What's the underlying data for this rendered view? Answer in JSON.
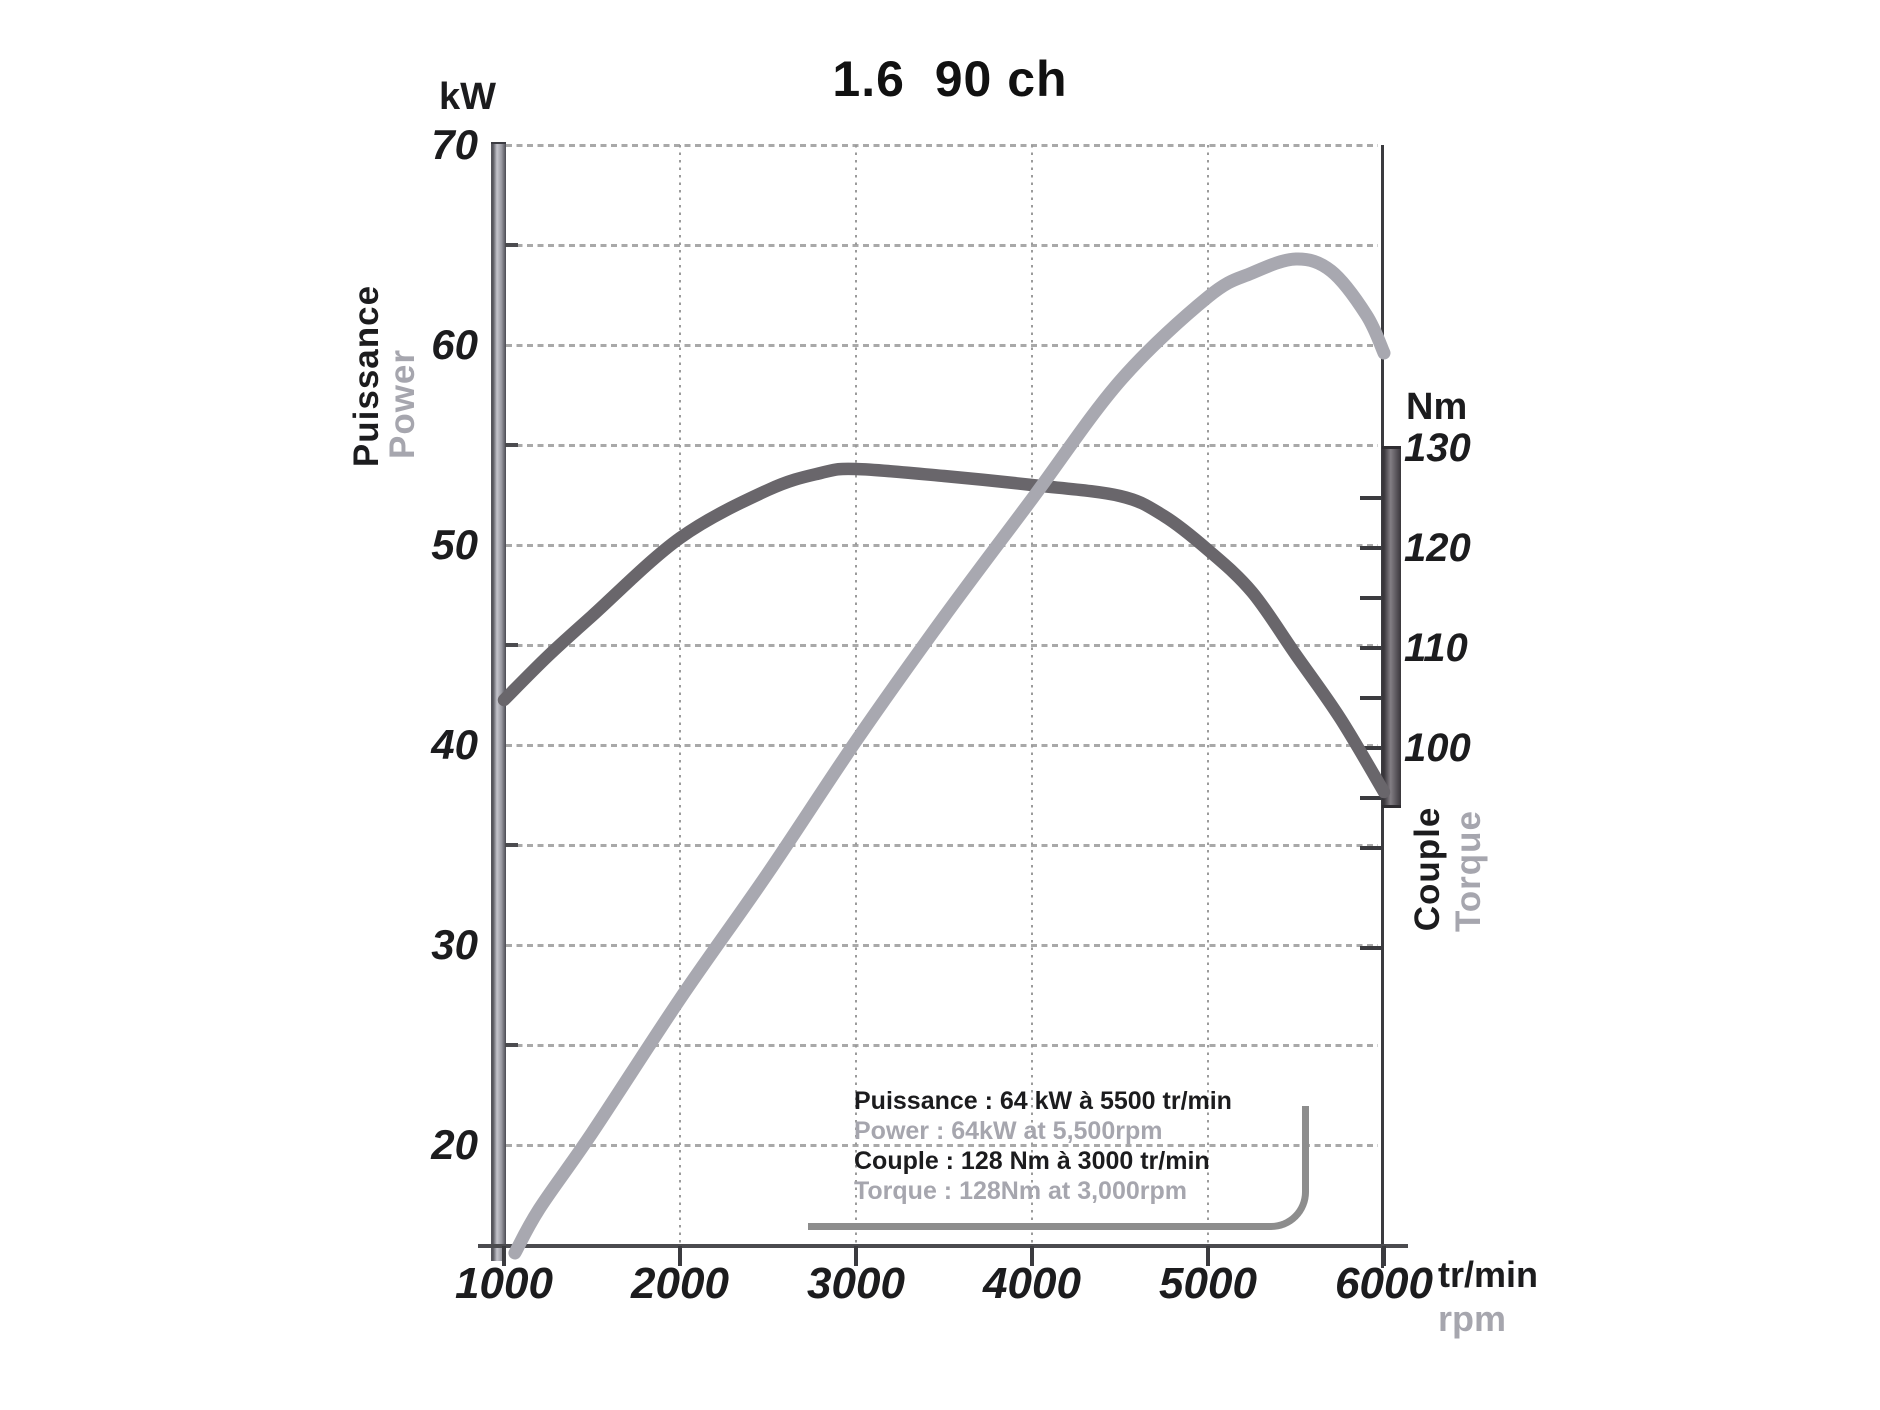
{
  "title": "1.6  90 ch",
  "power_axis": {
    "unit": "kW",
    "label_fr": "Puissance",
    "label_en": "Power",
    "tick_labels": [
      70,
      60,
      50,
      40,
      30,
      20
    ],
    "grid_values_kw": [
      70,
      65,
      60,
      55,
      50,
      45,
      40,
      35,
      30,
      25,
      20
    ],
    "minor_tick_values_kw": [
      65,
      55,
      45,
      35,
      25
    ]
  },
  "torque_axis": {
    "unit": "Nm",
    "label_fr": "Couple",
    "label_en": "Torque",
    "tick_labels": [
      130,
      120,
      110,
      100
    ],
    "tick_marks_nm": [
      125,
      120,
      115,
      110,
      105,
      100,
      95,
      90,
      80
    ]
  },
  "rpm_axis": {
    "unit_fr": "tr/min",
    "unit_en": "rpm",
    "tick_labels": [
      1000,
      2000,
      3000,
      4000,
      5000,
      6000
    ],
    "grid_values_rpm": [
      2000,
      3000,
      4000,
      5000
    ]
  },
  "annotation": {
    "power_fr": "Puissance : 64 kW à 5500 tr/min",
    "power_en": "Power : 64kW at 5,500rpm",
    "torque_fr": "Couple : 128 Nm à 3000 tr/min",
    "torque_en": "Torque : 128Nm at 3,000rpm"
  },
  "colors": {
    "power_curve": "#a8a8b0",
    "torque_curve": "#69666b",
    "gray_text": "#a6a6ae",
    "black_text": "#1c1c1e",
    "grid_dash": "#a9a9a9",
    "grid_dot": "#9b9b9b",
    "axis_dark": "#4b4b4f",
    "annotation_border": "#8d8d8d"
  },
  "chart_data": {
    "type": "line",
    "title": "1.6 90 ch — engine power and torque vs engine speed",
    "xlabel": "tr/min (rpm)",
    "x_range": [
      1000,
      6000
    ],
    "left_y": {
      "unit": "kW",
      "range": [
        15,
        70
      ],
      "grid_step": 5
    },
    "right_y": {
      "unit": "Nm",
      "range": [
        50,
        130
      ],
      "labels": [
        130,
        120,
        110,
        100
      ]
    },
    "grid": "dashed horizontal every 5 kW, dotted vertical every 1000 rpm",
    "series": [
      {
        "name": "Power",
        "unit": "kW",
        "axis": "left",
        "color": "#a8a8b0",
        "peak": "64 kW @ 5500 tr/min",
        "points": [
          [
            1062,
            14.6
          ],
          [
            1200,
            16.8
          ],
          [
            1500,
            20.6
          ],
          [
            2000,
            27.3
          ],
          [
            2500,
            33.6
          ],
          [
            3000,
            40.2
          ],
          [
            3500,
            46.4
          ],
          [
            4000,
            52.3
          ],
          [
            4500,
            58.2
          ],
          [
            5000,
            62.4
          ],
          [
            5250,
            63.6
          ],
          [
            5500,
            64.3
          ],
          [
            5700,
            63.7
          ],
          [
            5900,
            61.5
          ],
          [
            6000,
            59.6
          ]
        ]
      },
      {
        "name": "Torque",
        "unit": "Nm",
        "axis": "right",
        "color": "#69666b",
        "peak": "128 Nm @ 3000 tr/min",
        "points": [
          [
            1000,
            104.8
          ],
          [
            1250,
            109.2
          ],
          [
            1500,
            113.2
          ],
          [
            2000,
            121.0
          ],
          [
            2500,
            125.8
          ],
          [
            2800,
            127.5
          ],
          [
            3000,
            127.9
          ],
          [
            3500,
            127.2
          ],
          [
            4000,
            126.3
          ],
          [
            4500,
            125.2
          ],
          [
            4750,
            123.2
          ],
          [
            5000,
            119.8
          ],
          [
            5250,
            115.6
          ],
          [
            5500,
            109.3
          ],
          [
            5750,
            103.0
          ],
          [
            6000,
            95.6
          ]
        ]
      }
    ]
  }
}
